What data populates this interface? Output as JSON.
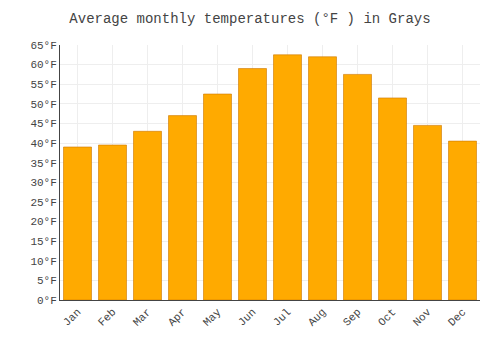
{
  "chart_data": {
    "type": "bar",
    "title": "Average monthly temperatures (°F ) in Grays",
    "categories": [
      "Jan",
      "Feb",
      "Mar",
      "Apr",
      "May",
      "Jun",
      "Jul",
      "Aug",
      "Sep",
      "Oct",
      "Nov",
      "Dec"
    ],
    "values": [
      39,
      39.5,
      43,
      47,
      52.5,
      59,
      62.5,
      62,
      57.5,
      51.5,
      44.5,
      40.5
    ],
    "color": "#FFAA00",
    "ylim": [
      0,
      65
    ],
    "yticks": [
      {
        "value": 0,
        "label": "0°F"
      },
      {
        "value": 5,
        "label": "5°F"
      },
      {
        "value": 10,
        "label": "10°F"
      },
      {
        "value": 15,
        "label": "15°F"
      },
      {
        "value": 20,
        "label": "20°F"
      },
      {
        "value": 25,
        "label": "25°F"
      },
      {
        "value": 30,
        "label": "30°F"
      },
      {
        "value": 35,
        "label": "35°F"
      },
      {
        "value": 40,
        "label": "40°F"
      },
      {
        "value": 45,
        "label": "45°F"
      },
      {
        "value": 50,
        "label": "50°F"
      },
      {
        "value": 55,
        "label": "55°F"
      },
      {
        "value": 60,
        "label": "60°F"
      },
      {
        "value": 65,
        "label": "65°F"
      }
    ],
    "grid": true
  }
}
